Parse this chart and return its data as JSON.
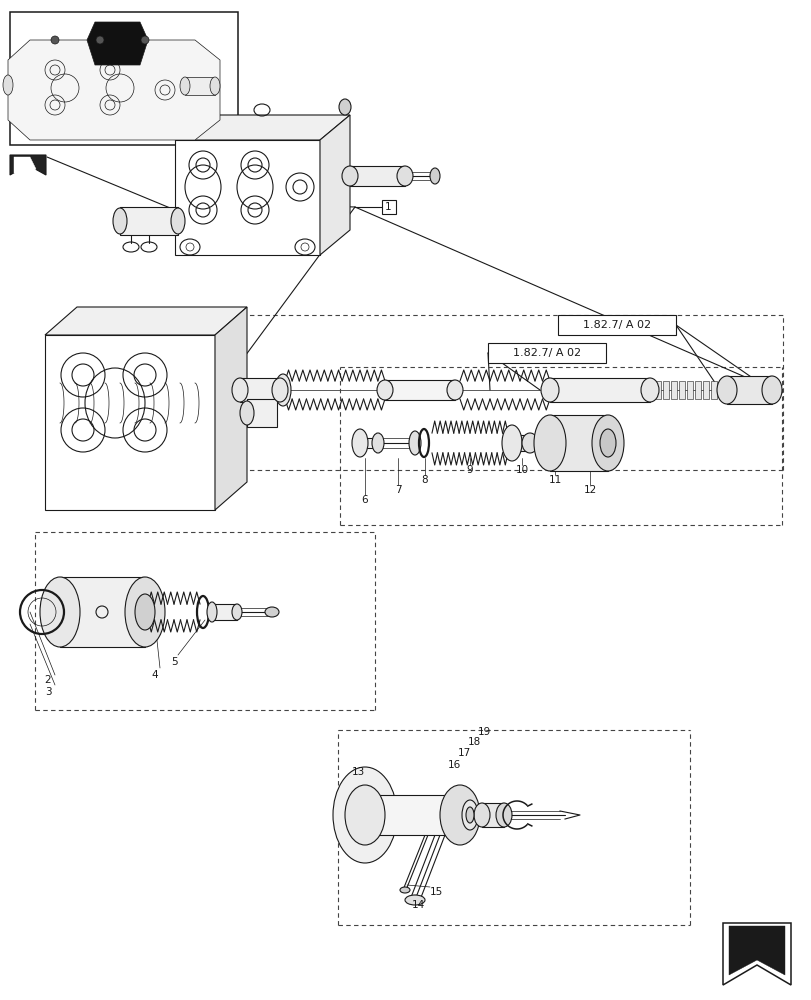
{
  "background_color": "#ffffff",
  "line_color": "#1a1a1a",
  "ref_label_1": "1.82.7/ A 02",
  "ref_label_2": "1.82.7/ A 02",
  "dashed_color": "#444444",
  "part_labels": [
    "1",
    "2",
    "3",
    "4",
    "5",
    "6",
    "7",
    "8",
    "9",
    "10",
    "11",
    "12",
    "13",
    "14",
    "15",
    "16",
    "17",
    "18",
    "19"
  ]
}
